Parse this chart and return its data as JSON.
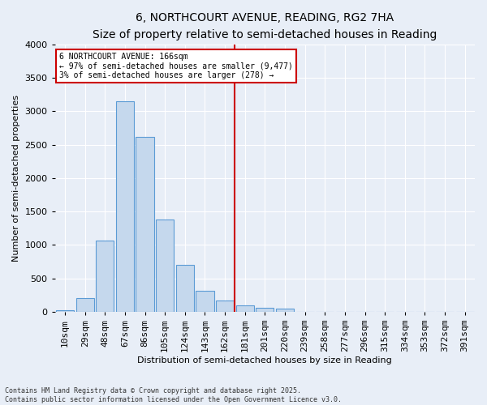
{
  "title": "6, NORTHCOURT AVENUE, READING, RG2 7HA",
  "subtitle": "Size of property relative to semi-detached houses in Reading",
  "xlabel": "Distribution of semi-detached houses by size in Reading",
  "ylabel": "Number of semi-detached properties",
  "footnote1": "Contains HM Land Registry data © Crown copyright and database right 2025.",
  "footnote2": "Contains public sector information licensed under the Open Government Licence v3.0.",
  "annotation_title": "6 NORTHCOURT AVENUE: 166sqm",
  "annotation_line1": "← 97% of semi-detached houses are smaller (9,477)",
  "annotation_line2": "3% of semi-detached houses are larger (278) →",
  "bar_color": "#c5d8ed",
  "bar_edge_color": "#5b9bd5",
  "vline_color": "#cc0000",
  "categories": [
    "10sqm",
    "29sqm",
    "48sqm",
    "67sqm",
    "86sqm",
    "105sqm",
    "124sqm",
    "143sqm",
    "162sqm",
    "181sqm",
    "201sqm",
    "220sqm",
    "239sqm",
    "258sqm",
    "277sqm",
    "296sqm",
    "315sqm",
    "334sqm",
    "353sqm",
    "372sqm",
    "391sqm"
  ],
  "values": [
    20,
    200,
    1070,
    3150,
    2620,
    1380,
    700,
    310,
    170,
    100,
    60,
    45,
    0,
    0,
    0,
    0,
    0,
    0,
    0,
    0,
    0
  ],
  "vline_index": 8.5,
  "ylim": [
    0,
    4000
  ],
  "yticks": [
    0,
    500,
    1000,
    1500,
    2000,
    2500,
    3000,
    3500,
    4000
  ],
  "background_color": "#e8eef7",
  "annotation_box_color": "#ffffff",
  "annotation_box_edge": "#cc0000",
  "title_fontsize": 10,
  "subtitle_fontsize": 9,
  "ylabel_fontsize": 8,
  "xlabel_fontsize": 8,
  "tick_fontsize": 8,
  "annot_fontsize": 7,
  "footnote_fontsize": 6
}
